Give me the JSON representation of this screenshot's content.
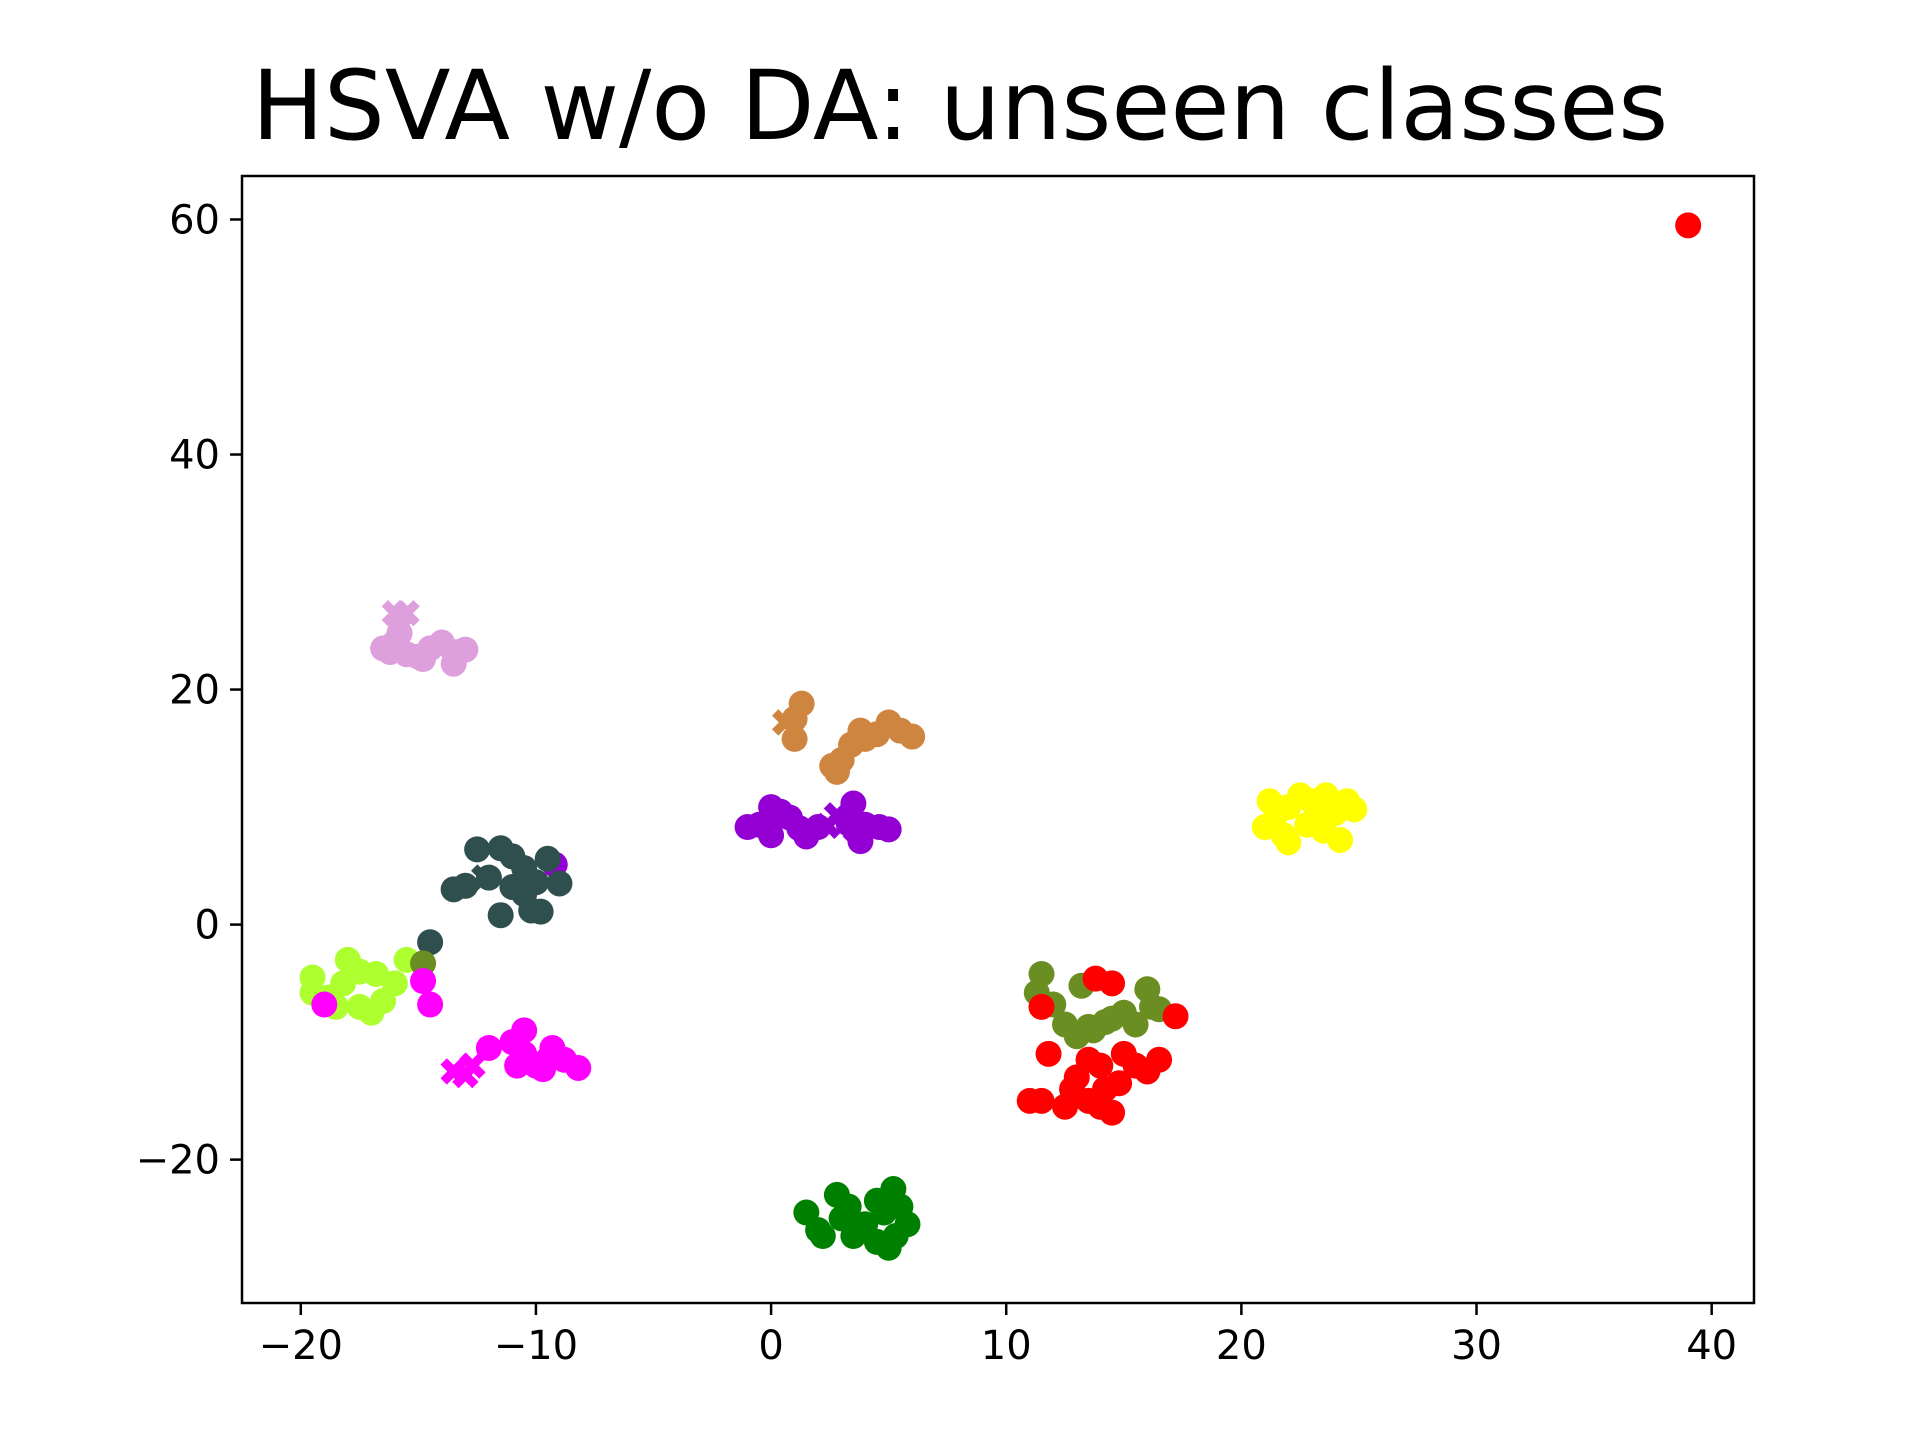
{
  "chart_data": {
    "type": "scatter",
    "title": "HSVA w/o DA: unseen classes",
    "xlabel": "",
    "ylabel": "",
    "xlim": [
      -22.5,
      41.8
    ],
    "ylim": [
      -32.2,
      63.7
    ],
    "grid": false,
    "x_ticks": [
      {
        "value": -20,
        "label": "−20"
      },
      {
        "value": -10,
        "label": "−10"
      },
      {
        "value": 0,
        "label": "0"
      },
      {
        "value": 10,
        "label": "10"
      },
      {
        "value": 20,
        "label": "20"
      },
      {
        "value": 30,
        "label": "30"
      },
      {
        "value": 40,
        "label": "40"
      }
    ],
    "y_ticks": [
      {
        "value": -20,
        "label": "−20"
      },
      {
        "value": 0,
        "label": "0"
      },
      {
        "value": 20,
        "label": "20"
      },
      {
        "value": 40,
        "label": "40"
      },
      {
        "value": 60,
        "label": "60"
      }
    ],
    "series": [
      {
        "color": "#dda0dd",
        "points": [
          [
            -16.5,
            23.5
          ],
          [
            -16,
            24
          ],
          [
            -15.5,
            23
          ],
          [
            -15,
            22.8
          ],
          [
            -14.5,
            23.5
          ],
          [
            -14,
            24
          ],
          [
            -13.5,
            23.2
          ],
          [
            -13,
            23.4
          ],
          [
            -15.8,
            24.8
          ],
          [
            -14.8,
            22.6
          ],
          [
            -13.5,
            22.2
          ],
          [
            -16.2,
            23.2
          ]
        ],
        "crosses": [
          [
            -16,
            26.5
          ],
          [
            -15.5,
            26.5
          ],
          [
            -15.8,
            25.2
          ]
        ]
      },
      {
        "color": "#cd853f",
        "points": [
          [
            1.3,
            18.8
          ],
          [
            1,
            17.5
          ],
          [
            1,
            15.8
          ],
          [
            2.8,
            13
          ],
          [
            3,
            14
          ],
          [
            3.4,
            15.3
          ],
          [
            3.8,
            16.5
          ],
          [
            4,
            15.8
          ],
          [
            5,
            17.2
          ],
          [
            5.5,
            16.5
          ],
          [
            6,
            16
          ],
          [
            4.5,
            16.2
          ],
          [
            2.6,
            13.5
          ]
        ],
        "crosses": [
          [
            0.6,
            17.2
          ]
        ]
      },
      {
        "color": "#9400d3",
        "points": [
          [
            -1,
            8.3
          ],
          [
            -0.5,
            8.5
          ],
          [
            0,
            10
          ],
          [
            0.3,
            9.2
          ],
          [
            0,
            7.6
          ],
          [
            0.8,
            9.1
          ],
          [
            1.5,
            7.5
          ],
          [
            1.2,
            8.2
          ],
          [
            2,
            8.3
          ],
          [
            3.5,
            10.3
          ],
          [
            3.3,
            8.6
          ],
          [
            3.8,
            7.1
          ],
          [
            4,
            8.5
          ],
          [
            4.6,
            8.3
          ],
          [
            5,
            8.1
          ],
          [
            0.4,
            9.6
          ],
          [
            -9.2,
            5.1
          ]
        ],
        "crosses": [
          [
            2.4,
            8.4
          ],
          [
            2.8,
            9.3
          ],
          [
            3.6,
            8.1
          ]
        ]
      },
      {
        "color": "#2f4f4f",
        "points": [
          [
            -12.5,
            6.4
          ],
          [
            -11.5,
            6.5
          ],
          [
            -11,
            5.8
          ],
          [
            -12,
            4
          ],
          [
            -11,
            3.2
          ],
          [
            -10.5,
            4.8
          ],
          [
            -10,
            3.6
          ],
          [
            -9.5,
            5.6
          ],
          [
            -9,
            3.5
          ],
          [
            -10.2,
            1.2
          ],
          [
            -11.5,
            0.8
          ],
          [
            -13.5,
            3
          ],
          [
            -13,
            3.3
          ],
          [
            -14.5,
            -1.5
          ],
          [
            -9.8,
            1.1
          ],
          [
            -10.5,
            2.6
          ]
        ],
        "crosses": [
          [
            -12.2,
            4
          ]
        ]
      },
      {
        "color": "#adff2f",
        "points": [
          [
            -19.5,
            -4.5
          ],
          [
            -19.5,
            -5.8
          ],
          [
            -18.8,
            -6.2
          ],
          [
            -18,
            -3
          ],
          [
            -17.5,
            -4
          ],
          [
            -18.2,
            -5
          ],
          [
            -17,
            -7.5
          ],
          [
            -17.5,
            -7
          ],
          [
            -16.5,
            -6.5
          ],
          [
            -16.8,
            -4.2
          ],
          [
            -15.5,
            -3
          ],
          [
            -16,
            -5
          ],
          [
            -18.5,
            -7
          ]
        ],
        "crosses": []
      },
      {
        "color": "#6b8e23",
        "points": [
          [
            -14.8,
            -3.3
          ],
          [
            11.5,
            -4.2
          ],
          [
            11.3,
            -5.8
          ],
          [
            12,
            -6.8
          ],
          [
            13.2,
            -5.2
          ],
          [
            12.5,
            -8.5
          ],
          [
            13,
            -9.5
          ],
          [
            13.7,
            -9
          ],
          [
            14.5,
            -8
          ],
          [
            15,
            -7.5
          ],
          [
            15.5,
            -8.5
          ],
          [
            16,
            -5.5
          ],
          [
            16.2,
            -7
          ],
          [
            16.5,
            -7.2
          ],
          [
            13.5,
            -8.7
          ],
          [
            14.2,
            -8.3
          ]
        ],
        "crosses": []
      },
      {
        "color": "#ff00ff",
        "points": [
          [
            -19,
            -6.8
          ],
          [
            -14.8,
            -4.8
          ],
          [
            -14.5,
            -6.8
          ],
          [
            -12,
            -10.5
          ],
          [
            -11,
            -10
          ],
          [
            -10.5,
            -9
          ],
          [
            -10.5,
            -11
          ],
          [
            -10,
            -12
          ],
          [
            -9.5,
            -11.5
          ],
          [
            -9.3,
            -10.5
          ],
          [
            -8.8,
            -11.5
          ],
          [
            -8.2,
            -12.2
          ],
          [
            -10.8,
            -12
          ],
          [
            -9.7,
            -12.3
          ]
        ],
        "crosses": [
          [
            -13.5,
            -12.5
          ],
          [
            -13,
            -12.8
          ],
          [
            -12.7,
            -12
          ]
        ]
      },
      {
        "color": "#ff0000",
        "points": [
          [
            39,
            59.5
          ],
          [
            11.5,
            -7
          ],
          [
            13.8,
            -4.6
          ],
          [
            14.5,
            -5
          ],
          [
            17.2,
            -7.8
          ],
          [
            11,
            -15
          ],
          [
            11.5,
            -15
          ],
          [
            11.8,
            -11
          ],
          [
            12.5,
            -15.5
          ],
          [
            13,
            -13
          ],
          [
            13.5,
            -11.5
          ],
          [
            14,
            -12
          ],
          [
            14.2,
            -14
          ],
          [
            14,
            -15.5
          ],
          [
            14.5,
            -16
          ],
          [
            14.8,
            -13.5
          ],
          [
            15,
            -11
          ],
          [
            15.5,
            -12
          ],
          [
            16,
            -12.5
          ],
          [
            16.5,
            -11.5
          ],
          [
            12.8,
            -14
          ],
          [
            13.5,
            -15
          ]
        ],
        "crosses": []
      },
      {
        "color": "#ffff00",
        "points": [
          [
            21,
            8.3
          ],
          [
            21.2,
            10.5
          ],
          [
            21.5,
            9.5
          ],
          [
            22,
            7
          ],
          [
            22,
            10
          ],
          [
            22.5,
            11
          ],
          [
            22.8,
            8.5
          ],
          [
            23,
            10.5
          ],
          [
            23.5,
            8
          ],
          [
            23.6,
            11
          ],
          [
            24,
            9.5
          ],
          [
            24.2,
            7.2
          ],
          [
            24.5,
            10.5
          ],
          [
            24.8,
            9.8
          ],
          [
            21.8,
            7.6
          ],
          [
            23.2,
            9.2
          ]
        ],
        "crosses": []
      },
      {
        "color": "#008000",
        "points": [
          [
            1.5,
            -24.5
          ],
          [
            2,
            -26
          ],
          [
            2.2,
            -26.5
          ],
          [
            2.8,
            -23
          ],
          [
            3,
            -25
          ],
          [
            3.3,
            -24
          ],
          [
            3.5,
            -26.5
          ],
          [
            4,
            -25.5
          ],
          [
            4.5,
            -23.5
          ],
          [
            4.8,
            -24.5
          ],
          [
            5,
            -27.5
          ],
          [
            5.2,
            -22.5
          ],
          [
            5.3,
            -26.5
          ],
          [
            5.5,
            -24
          ],
          [
            5.8,
            -25.5
          ],
          [
            4.5,
            -27
          ]
        ],
        "crosses": []
      }
    ]
  }
}
